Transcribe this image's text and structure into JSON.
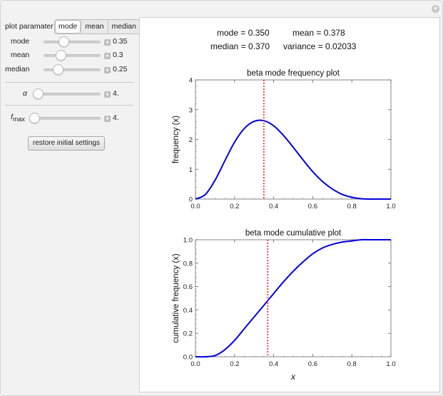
{
  "controls": {
    "plot_parameter_label": "plot paramater",
    "segments": [
      {
        "label": "mode",
        "active": true
      },
      {
        "label": "mean",
        "active": false
      },
      {
        "label": "median",
        "active": false
      }
    ],
    "sliders": {
      "mode": {
        "label": "mode",
        "value": "0.35",
        "fraction": 0.35
      },
      "mean": {
        "label": "mean",
        "value": "0.3",
        "fraction": 0.3
      },
      "median": {
        "label": "median",
        "value": "0.25",
        "fraction": 0.25
      },
      "alpha": {
        "label": "α",
        "value": "4.",
        "fraction": 0.04
      },
      "fmax": {
        "label": "f",
        "sub": "max",
        "value": "4.",
        "fraction": 0.04
      }
    },
    "restore_label": "restore initial settings"
  },
  "stats": {
    "mode": "mode = 0.350",
    "mean": "mean = 0.378",
    "median": "median = 0.370",
    "variance": "variance = 0.02033"
  },
  "colors": {
    "curve": "#0000dd",
    "marker": "#ff0000",
    "panel_bg": "#f2f2f2"
  },
  "chart_data": [
    {
      "type": "line",
      "title": "beta mode frequency plot",
      "xlabel": "",
      "ylabel": "frequency (x)",
      "xlim": [
        0,
        1
      ],
      "ylim": [
        0,
        4
      ],
      "xticks": [
        "0.0",
        "0.2",
        "0.4",
        "0.6",
        "0.8",
        "1.0"
      ],
      "yticks": [
        "0",
        "1",
        "2",
        "3",
        "4"
      ],
      "series": [
        {
          "x": [
            0,
            0.05,
            0.1,
            0.15,
            0.2,
            0.25,
            0.3,
            0.35,
            0.4,
            0.45,
            0.5,
            0.55,
            0.6,
            0.65,
            0.7,
            0.75,
            0.8,
            0.85,
            0.9,
            0.95,
            1.0
          ],
          "y": [
            0,
            0.15,
            0.63,
            1.28,
            1.91,
            2.37,
            2.61,
            2.63,
            2.46,
            2.14,
            1.74,
            1.32,
            0.92,
            0.59,
            0.34,
            0.16,
            0.06,
            0.01,
            0,
            0,
            0
          ]
        }
      ],
      "vline": 0.35
    },
    {
      "type": "line",
      "title": "beta mode cumulative plot",
      "xlabel": "x",
      "ylabel": "cumulative frequency (x)",
      "xlim": [
        0,
        1
      ],
      "ylim": [
        0,
        1
      ],
      "xticks": [
        "0.0",
        "0.2",
        "0.4",
        "0.6",
        "0.8",
        "1.0"
      ],
      "yticks": [
        "0.0",
        "0.2",
        "0.4",
        "0.6",
        "0.8",
        "1.0"
      ],
      "series": [
        {
          "x": [
            0,
            0.05,
            0.1,
            0.15,
            0.2,
            0.25,
            0.3,
            0.35,
            0.4,
            0.45,
            0.5,
            0.55,
            0.6,
            0.65,
            0.7,
            0.75,
            0.8,
            0.85,
            0.9,
            0.95,
            1.0
          ],
          "y": [
            0,
            0,
            0.01,
            0.06,
            0.14,
            0.24,
            0.34,
            0.44,
            0.54,
            0.64,
            0.73,
            0.81,
            0.88,
            0.93,
            0.96,
            0.98,
            0.99,
            1.0,
            1.0,
            1.0,
            1.0
          ]
        }
      ],
      "vline": 0.37
    }
  ]
}
